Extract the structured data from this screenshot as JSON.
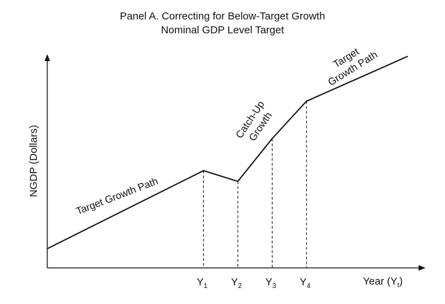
{
  "chart_data": {
    "type": "line",
    "title": "Panel A. Correcting for Below-Target Growth",
    "subtitle": "Nominal GDP Level Target",
    "xlabel": "Year (Yt)",
    "xlabel_main": "Year (Y",
    "xlabel_sub": "t",
    "xlabel_close": ")",
    "ylabel": "NGDP (Dollars)",
    "grid": false,
    "legend": "none",
    "x_ticks": [
      {
        "label": "Y1",
        "base": "Y",
        "sub": "1",
        "x": 1
      },
      {
        "label": "Y2",
        "base": "Y",
        "sub": "2",
        "x": 2
      },
      {
        "label": "Y3",
        "base": "Y",
        "sub": "3",
        "x": 3
      },
      {
        "label": "Y4",
        "base": "Y",
        "sub": "4",
        "x": 4
      }
    ],
    "xlim": [
      -3.55,
      6.9
    ],
    "ylim": [
      0,
      10
    ],
    "series": [
      {
        "x": [
          -3.55,
          1,
          2,
          3,
          4,
          6.95
        ],
        "y": [
          0.9,
          4.55,
          4.05,
          6.05,
          7.8,
          9.9
        ]
      }
    ],
    "annotations": [
      {
        "id": "target-growth-path-left",
        "lines": [
          "Target Growth Path"
        ]
      },
      {
        "id": "catch-up-growth",
        "lines": [
          "Catch-Up",
          "Growth"
        ]
      },
      {
        "id": "target-growth-path-right",
        "lines": [
          "Target",
          "Growth Path"
        ]
      }
    ]
  }
}
